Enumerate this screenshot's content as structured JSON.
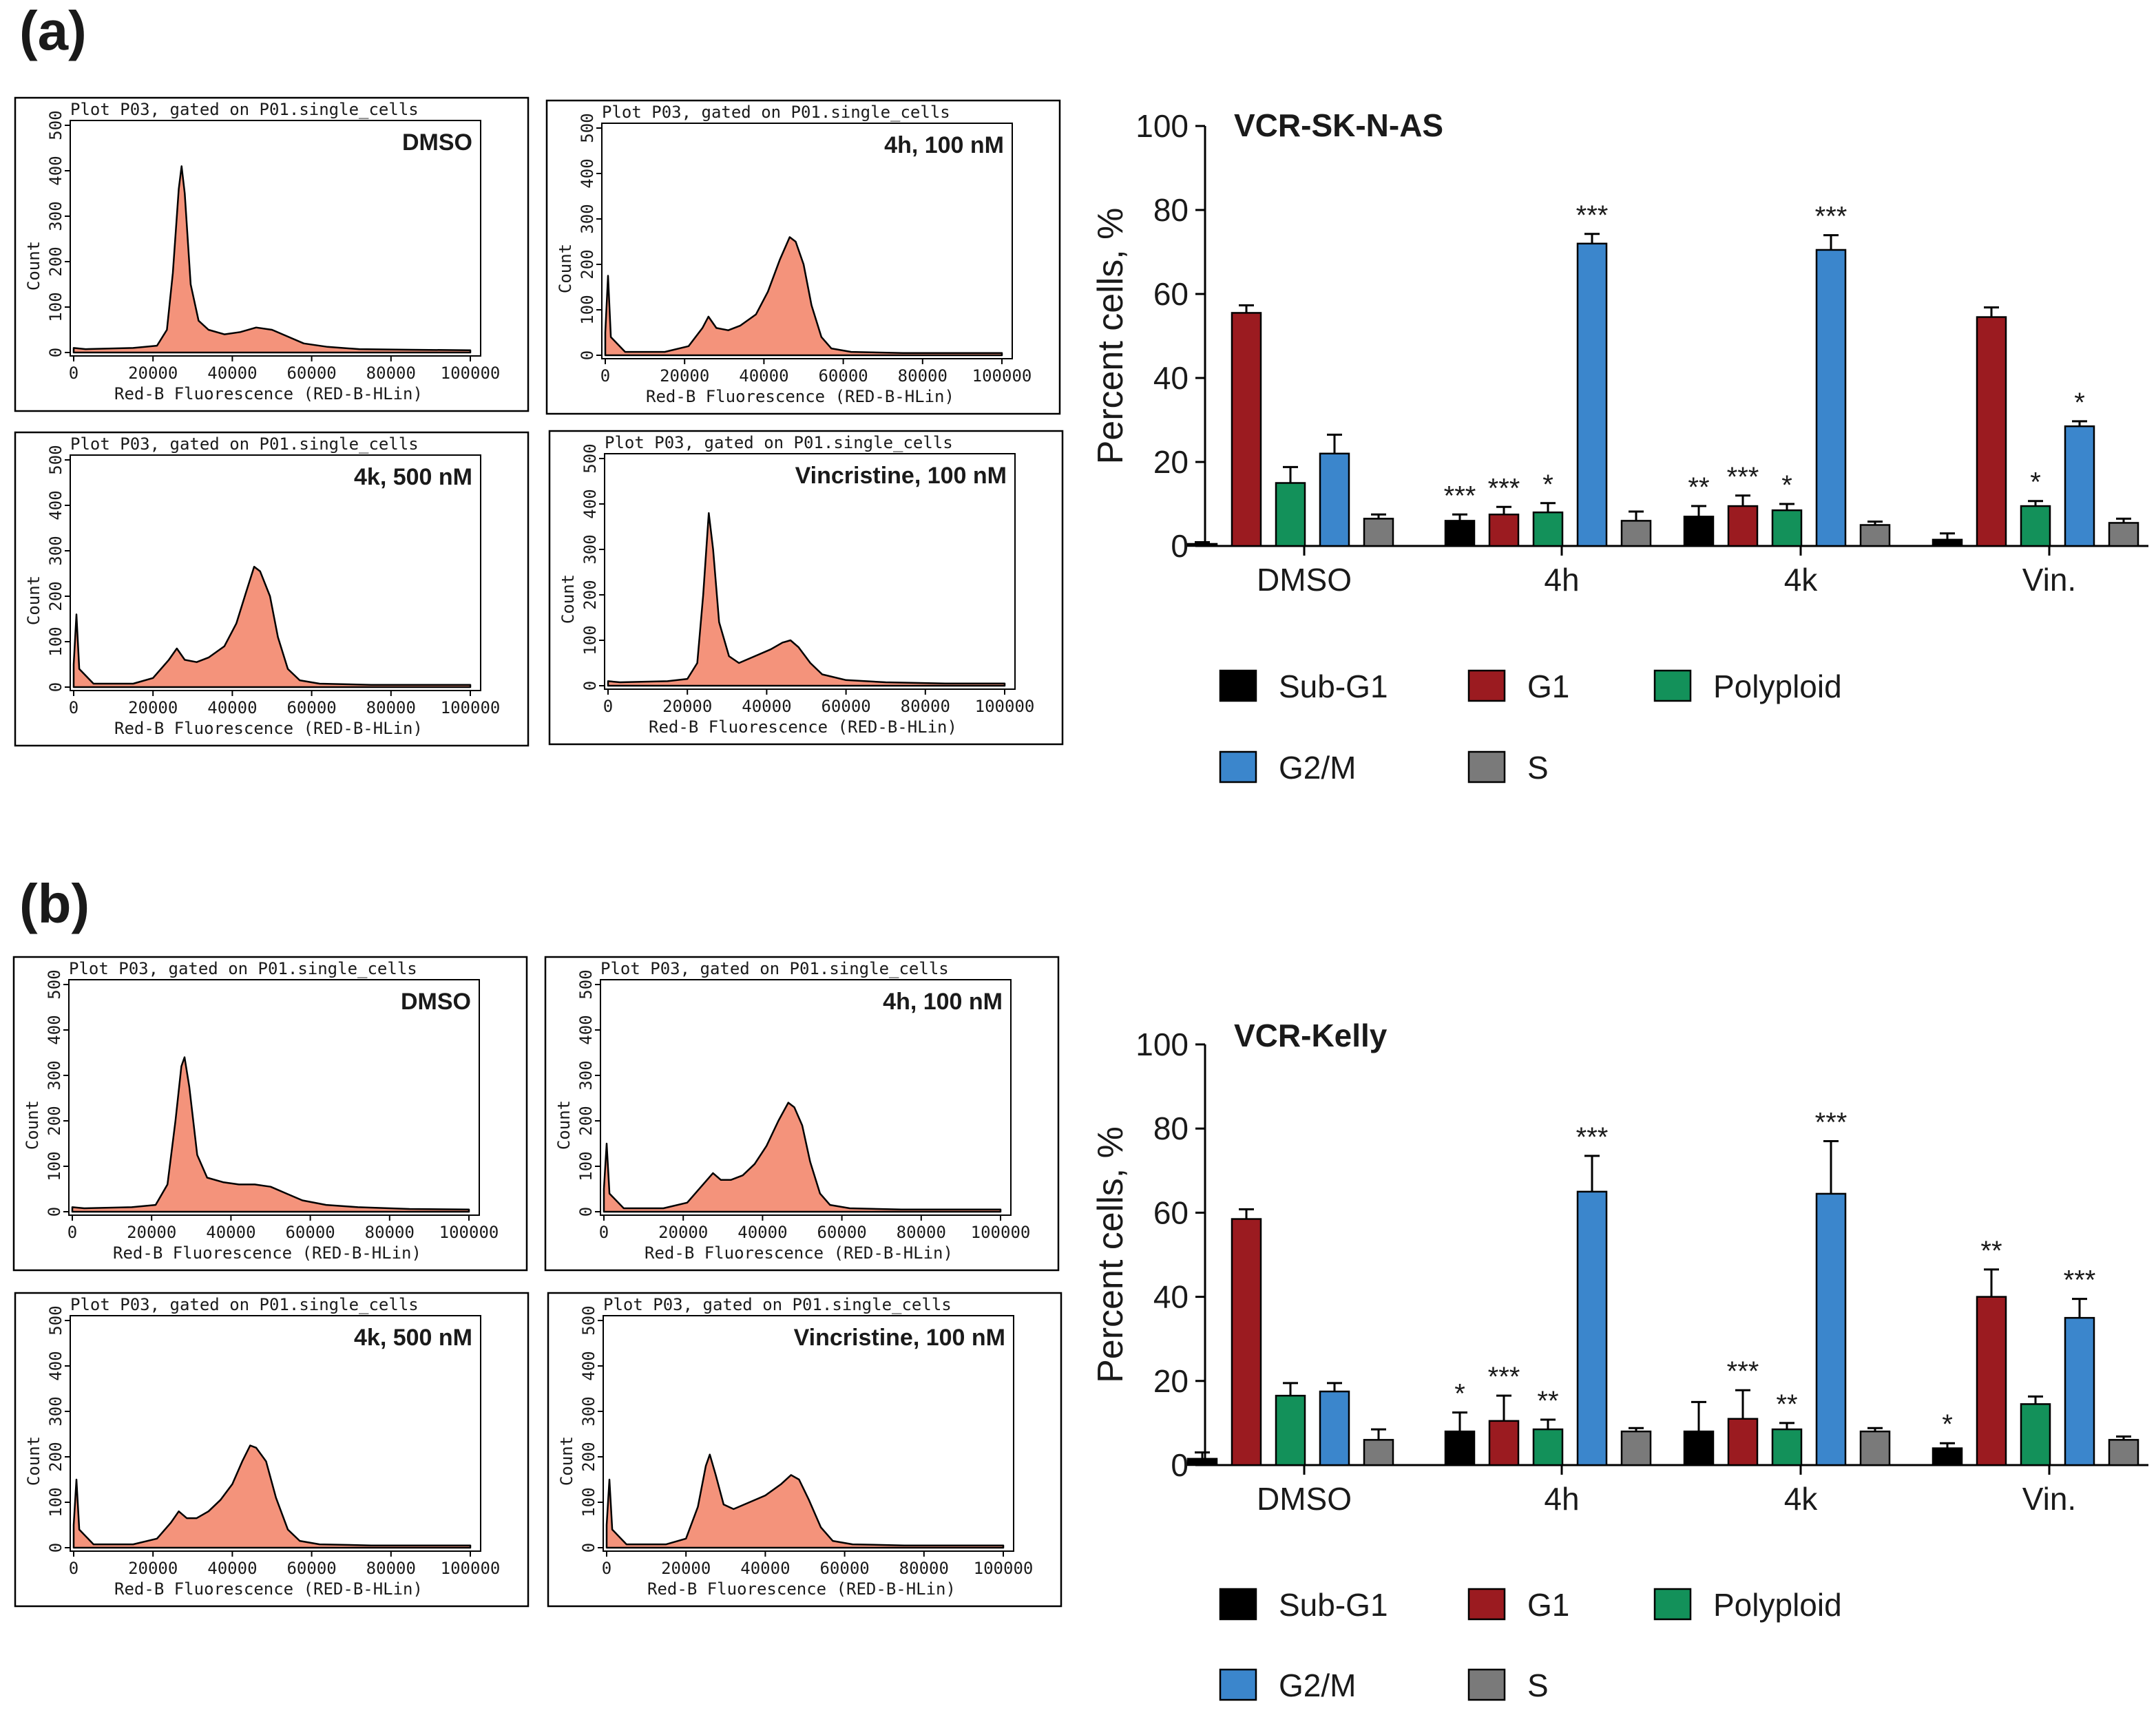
{
  "panel_labels": [
    "(a)",
    "(b)"
  ],
  "histograms": {
    "header": "Plot P03, gated on P01.single_cells",
    "xlabel": "Red-B Fluorescence (RED-B-HLin)",
    "ylabel": "Count",
    "x_ticks": [
      "0",
      "20000",
      "40000",
      "60000",
      "80000",
      "100000"
    ],
    "y_ticks": [
      "0",
      "100",
      "200",
      "300",
      "400",
      "500"
    ],
    "fill_color": "#f4937b",
    "line_color": "#000000",
    "conditions": [
      "DMSO",
      "4h, 100 nM",
      "4k, 500 nM",
      "Vincristine, 100 nM"
    ]
  },
  "legend": {
    "items": [
      {
        "name": "Sub-G1",
        "color": "#000000"
      },
      {
        "name": "G1",
        "color": "#9b1b20"
      },
      {
        "name": "Polyploid",
        "color": "#13915a"
      },
      {
        "name": "G2/M",
        "color": "#3b86cc"
      },
      {
        "name": "S",
        "color": "#7a7a7a"
      }
    ]
  },
  "chart_data": [
    {
      "type": "bar",
      "title": "VCR-SK-N-AS",
      "xlabel": "",
      "ylabel": "Percent cells, %",
      "ylim": [
        0,
        100
      ],
      "y_ticks": [
        "0",
        "20",
        "40",
        "60",
        "80",
        "100"
      ],
      "categories": [
        "DMSO",
        "4h",
        "4k",
        "Vin."
      ],
      "series": [
        {
          "name": "Sub-G1",
          "values": [
            0.5,
            6,
            7,
            1.5
          ],
          "errors": [
            0.4,
            1.5,
            2.5,
            1.5
          ],
          "sig": [
            "",
            "***",
            "**",
            ""
          ]
        },
        {
          "name": "G1",
          "values": [
            55.5,
            7.5,
            9.5,
            54.5
          ],
          "errors": [
            1.8,
            1.8,
            2.5,
            2.3
          ],
          "sig": [
            "",
            "***",
            "***",
            ""
          ]
        },
        {
          "name": "Polyploid",
          "values": [
            15,
            8,
            8.5,
            9.5
          ],
          "errors": [
            3.8,
            2.2,
            1.5,
            1.2
          ],
          "sig": [
            "",
            "*",
            "*",
            "*"
          ]
        },
        {
          "name": "G2/M",
          "values": [
            22,
            72,
            70.5,
            28.5
          ],
          "errors": [
            4.5,
            2.3,
            3.5,
            1.2
          ],
          "sig": [
            "",
            "***",
            "***",
            "*"
          ]
        },
        {
          "name": "S",
          "values": [
            6.5,
            6,
            5,
            5.5
          ],
          "errors": [
            1.0,
            2.2,
            0.8,
            1.0
          ],
          "sig": [
            "",
            "",
            "",
            ""
          ]
        }
      ]
    },
    {
      "type": "bar",
      "title": "VCR-Kelly",
      "xlabel": "",
      "ylabel": "Percent cells, %",
      "ylim": [
        0,
        100
      ],
      "y_ticks": [
        "0",
        "20",
        "40",
        "60",
        "80",
        "100"
      ],
      "categories": [
        "DMSO",
        "4h",
        "4k",
        "Vin."
      ],
      "series": [
        {
          "name": "Sub-G1",
          "values": [
            1.5,
            8,
            8,
            4
          ],
          "errors": [
            1.5,
            4.5,
            7,
            1.2
          ],
          "sig": [
            "",
            "*",
            "",
            "*"
          ]
        },
        {
          "name": "G1",
          "values": [
            58.5,
            10.5,
            11,
            40
          ],
          "errors": [
            2.3,
            6,
            6.8,
            6.5
          ],
          "sig": [
            "",
            "***",
            "***",
            "**"
          ]
        },
        {
          "name": "Polyploid",
          "values": [
            16.5,
            8.5,
            8.5,
            14.5
          ],
          "errors": [
            3,
            2.3,
            1.5,
            1.8
          ],
          "sig": [
            "",
            "**",
            "**",
            ""
          ]
        },
        {
          "name": "G2/M",
          "values": [
            17.5,
            65,
            64.5,
            35
          ],
          "errors": [
            2,
            8.5,
            12.5,
            4.5
          ],
          "sig": [
            "",
            "***",
            "***",
            "***"
          ]
        },
        {
          "name": "S",
          "values": [
            6,
            8,
            8,
            6
          ],
          "errors": [
            2.5,
            0.8,
            0.8,
            0.8
          ],
          "sig": [
            "",
            "",
            "",
            ""
          ]
        }
      ]
    }
  ]
}
